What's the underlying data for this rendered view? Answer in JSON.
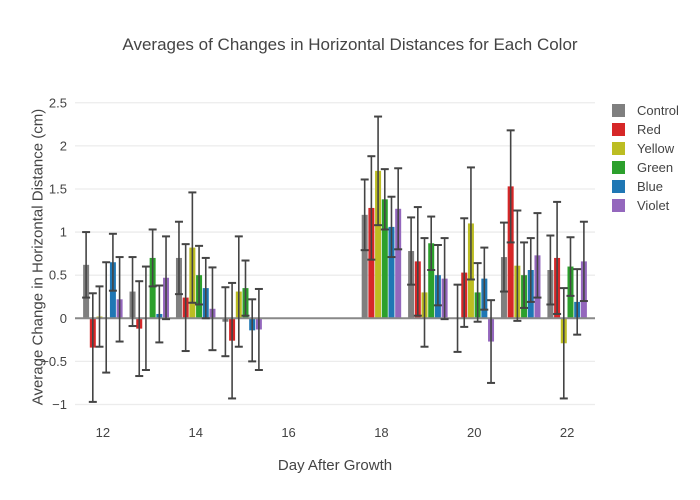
{
  "title": "Averages of Changes in Horizontal Distances for Each Color",
  "chart_data": {
    "type": "bar",
    "title": "Averages of Changes in Horizontal Distances for Each Color",
    "xlabel": "Day After Growth",
    "ylabel": "Average Change in Horizontal Distance (cm)",
    "x": [
      12,
      13,
      14,
      15,
      18,
      19,
      20,
      21,
      22
    ],
    "xlim": [
      11.4,
      22.6
    ],
    "ylim": [
      -1.18,
      2.59
    ],
    "x_ticks": [
      12,
      14,
      16,
      18,
      20,
      22
    ],
    "x_tick_labels": [
      "12",
      "14",
      "16",
      "18",
      "20",
      "22"
    ],
    "y_ticks": [
      -1,
      -0.5,
      0,
      0.5,
      1,
      1.5,
      2,
      2.5
    ],
    "y_tick_labels": [
      "−1",
      "−0.5",
      "0",
      "0.5",
      "1",
      "1.5",
      "2",
      "2.5"
    ],
    "grid": true,
    "legend_position": "right",
    "error_bar_color": "#444444",
    "gridline_color": "#ececec",
    "zeroline_color": "#888888",
    "text_color": "#444444",
    "series": [
      {
        "name": "Control",
        "color": "#7f7f7f",
        "values": [
          0.62,
          0.31,
          0.7,
          -0.04,
          1.2,
          0.78,
          0.0,
          0.71,
          0.56
        ],
        "errors": [
          0.38,
          0.4,
          0.42,
          0.4,
          0.41,
          0.39,
          0.39,
          0.4,
          0.4
        ]
      },
      {
        "name": "Red",
        "color": "#d62728",
        "values": [
          -0.34,
          -0.12,
          0.24,
          -0.26,
          1.28,
          0.66,
          0.53,
          1.53,
          0.7
        ],
        "errors": [
          0.63,
          0.55,
          0.62,
          0.67,
          0.6,
          0.63,
          0.63,
          0.65,
          0.65
        ]
      },
      {
        "name": "Yellow",
        "color": "#bcbd22",
        "values": [
          0.02,
          0.0,
          0.82,
          0.31,
          1.71,
          0.3,
          1.1,
          0.61,
          -0.29
        ],
        "errors": [
          0.35,
          0.6,
          0.64,
          0.64,
          0.63,
          0.63,
          0.65,
          0.64,
          0.64
        ]
      },
      {
        "name": "Green",
        "color": "#2ca02c",
        "values": [
          0.01,
          0.7,
          0.5,
          0.35,
          1.38,
          0.87,
          0.3,
          0.5,
          0.6
        ],
        "errors": [
          0.64,
          0.33,
          0.34,
          0.32,
          0.35,
          0.31,
          0.34,
          0.38,
          0.34
        ]
      },
      {
        "name": "Blue",
        "color": "#1f77b4",
        "values": [
          0.65,
          0.05,
          0.35,
          -0.14,
          1.06,
          0.5,
          0.46,
          0.56,
          0.19
        ],
        "errors": [
          0.33,
          0.33,
          0.35,
          0.36,
          0.35,
          0.35,
          0.36,
          0.37,
          0.38
        ]
      },
      {
        "name": "Violet",
        "color": "#9467bd",
        "values": [
          0.22,
          0.47,
          0.11,
          -0.13,
          1.27,
          0.46,
          -0.27,
          0.73,
          0.66
        ],
        "errors": [
          0.49,
          0.48,
          0.48,
          0.47,
          0.47,
          0.47,
          0.48,
          0.49,
          0.46
        ]
      }
    ]
  }
}
